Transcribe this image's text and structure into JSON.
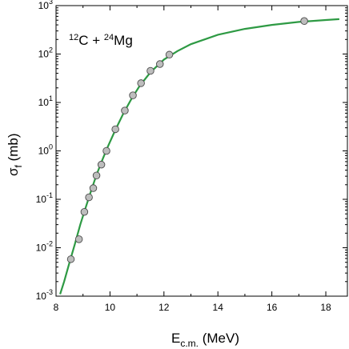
{
  "chart_data": {
    "type": "scatter",
    "xlabel": {
      "main": "E",
      "sub": "c.m.",
      "tail": " (MeV)"
    },
    "ylabel": {
      "main": "σ",
      "sub": "f",
      "tail": " (mb)"
    },
    "xlim": [
      8,
      18.8
    ],
    "ylim_log10": [
      -3,
      3
    ],
    "y_scale": "log",
    "grid": false,
    "x_ticks": [
      8,
      10,
      12,
      14,
      16,
      18
    ],
    "x_tick_labels": [
      "8",
      "10",
      "12",
      "14",
      "16",
      "18"
    ],
    "y_ticks_log10": [
      -3,
      -2,
      -1,
      0,
      1,
      2,
      3
    ],
    "y_tick_labels": [
      {
        "base": "10",
        "exp": "-3"
      },
      {
        "base": "10",
        "exp": "-2"
      },
      {
        "base": "10",
        "exp": "-1"
      },
      {
        "base": "10",
        "exp": "0"
      },
      {
        "base": "10",
        "exp": "1"
      },
      {
        "base": "10",
        "exp": "2"
      },
      {
        "base": "10",
        "exp": "3"
      }
    ],
    "annotation": [
      {
        "text": "12",
        "sup": true
      },
      {
        "text": "C + ",
        "sup": false
      },
      {
        "text": "24",
        "sup": true
      },
      {
        "text": "Mg",
        "sup": false
      }
    ],
    "points": [
      {
        "x": 8.55,
        "y": 0.0058
      },
      {
        "x": 8.85,
        "y": 0.015
      },
      {
        "x": 9.05,
        "y": 0.055
      },
      {
        "x": 9.22,
        "y": 0.11
      },
      {
        "x": 9.38,
        "y": 0.17
      },
      {
        "x": 9.5,
        "y": 0.31
      },
      {
        "x": 9.68,
        "y": 0.52
      },
      {
        "x": 9.87,
        "y": 1.0
      },
      {
        "x": 10.2,
        "y": 2.8
      },
      {
        "x": 10.55,
        "y": 6.8
      },
      {
        "x": 10.85,
        "y": 14
      },
      {
        "x": 11.15,
        "y": 25
      },
      {
        "x": 11.5,
        "y": 45
      },
      {
        "x": 11.85,
        "y": 62
      },
      {
        "x": 12.2,
        "y": 97
      },
      {
        "x": 17.2,
        "y": 480
      }
    ],
    "curve": [
      {
        "x": 8.15,
        "y": 0.0011
      },
      {
        "x": 8.3,
        "y": 0.002
      },
      {
        "x": 8.5,
        "y": 0.005
      },
      {
        "x": 8.7,
        "y": 0.012
      },
      {
        "x": 8.9,
        "y": 0.03
      },
      {
        "x": 9.1,
        "y": 0.068
      },
      {
        "x": 9.3,
        "y": 0.15
      },
      {
        "x": 9.5,
        "y": 0.32
      },
      {
        "x": 9.7,
        "y": 0.62
      },
      {
        "x": 9.9,
        "y": 1.15
      },
      {
        "x": 10.2,
        "y": 2.7
      },
      {
        "x": 10.5,
        "y": 6.0
      },
      {
        "x": 10.8,
        "y": 12
      },
      {
        "x": 11.1,
        "y": 22
      },
      {
        "x": 11.5,
        "y": 42
      },
      {
        "x": 12.0,
        "y": 77
      },
      {
        "x": 12.5,
        "y": 115
      },
      {
        "x": 13.0,
        "y": 160
      },
      {
        "x": 14.0,
        "y": 250
      },
      {
        "x": 15.0,
        "y": 330
      },
      {
        "x": 16.0,
        "y": 400
      },
      {
        "x": 17.0,
        "y": 460
      },
      {
        "x": 18.0,
        "y": 505
      },
      {
        "x": 18.5,
        "y": 525
      }
    ],
    "colors": {
      "curve": "#2e9a44",
      "marker_fill": "#bdbdbd",
      "marker_stroke": "#4a4a4a",
      "axis": "#000000"
    }
  }
}
